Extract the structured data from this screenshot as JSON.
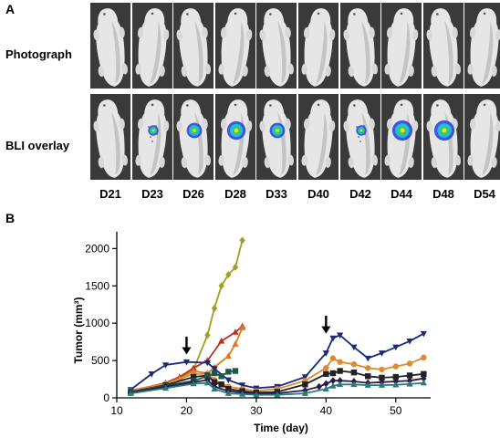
{
  "panel_a": {
    "label": "A",
    "rows": [
      "Photograph",
      "BLI overlay"
    ],
    "days": [
      "D21",
      "D23",
      "D26",
      "D28",
      "D33",
      "D40",
      "D42",
      "D44",
      "D48",
      "D54"
    ],
    "signal": [
      0,
      0.3,
      0.6,
      0.8,
      0.6,
      0,
      0.3,
      0.9,
      0.9,
      0
    ],
    "signal_colors": [
      "#1f3fd6",
      "#22c0e0",
      "#3cd23c",
      "#f0e030"
    ]
  },
  "panel_b": {
    "label": "B",
    "arrows_at_days": [
      20,
      40
    ]
  },
  "chart_data": {
    "type": "line",
    "xlabel": "Time (day)",
    "ylabel": "Tumor (mm³)",
    "xlim": [
      10,
      55
    ],
    "ylim": [
      0,
      2200
    ],
    "xticks": [
      10,
      20,
      30,
      40,
      50
    ],
    "yticks": [
      0,
      500,
      1000,
      1500,
      2000
    ],
    "series": [
      {
        "color": "#a0a020",
        "marker": "diamond",
        "x": [
          12,
          17,
          19,
          21,
          23,
          24,
          25,
          26,
          27,
          28
        ],
        "y": [
          80,
          180,
          260,
          380,
          840,
          1200,
          1500,
          1650,
          1750,
          2110
        ]
      },
      {
        "color": "#b83020",
        "marker": "triangle-up",
        "x": [
          12,
          17,
          19,
          21,
          23,
          25,
          27,
          28
        ],
        "y": [
          90,
          200,
          280,
          400,
          500,
          760,
          880,
          960
        ]
      },
      {
        "color": "#e07820",
        "marker": "triangle-up",
        "x": [
          12,
          17,
          19,
          21,
          23,
          24,
          26,
          27,
          28
        ],
        "y": [
          100,
          190,
          260,
          360,
          330,
          410,
          560,
          720,
          940
        ]
      },
      {
        "color": "#1a2a7a",
        "marker": "triangle-down",
        "x": [
          12,
          15,
          17,
          20,
          23,
          24,
          26,
          28,
          30,
          33,
          37,
          40,
          41,
          42,
          44,
          46,
          48,
          50,
          52,
          54
        ],
        "y": [
          110,
          320,
          440,
          480,
          470,
          390,
          240,
          170,
          130,
          150,
          280,
          600,
          800,
          840,
          680,
          530,
          600,
          680,
          760,
          860
        ]
      },
      {
        "color": "#e08a30",
        "marker": "circle",
        "x": [
          12,
          17,
          21,
          23,
          24,
          26,
          28,
          30,
          33,
          37,
          40,
          41,
          42,
          44,
          46,
          48,
          50,
          52,
          54
        ],
        "y": [
          90,
          190,
          320,
          320,
          240,
          150,
          120,
          90,
          120,
          230,
          400,
          530,
          480,
          450,
          400,
          380,
          420,
          460,
          540
        ]
      },
      {
        "color": "#222222",
        "marker": "square",
        "x": [
          12,
          17,
          21,
          23,
          24,
          25,
          26,
          28,
          30,
          33,
          37,
          40,
          41,
          42,
          44,
          46,
          48,
          50,
          52,
          54
        ],
        "y": [
          80,
          170,
          280,
          300,
          210,
          180,
          120,
          90,
          70,
          80,
          180,
          320,
          330,
          360,
          340,
          290,
          270,
          280,
          300,
          320
        ]
      },
      {
        "color": "#1a5a4a",
        "marker": "square",
        "x": [
          12,
          17,
          21,
          23,
          24,
          25,
          26,
          27
        ],
        "y": [
          80,
          160,
          230,
          290,
          330,
          290,
          350,
          360
        ]
      },
      {
        "color": "#2a1a4a",
        "marker": "diamond",
        "x": [
          12,
          17,
          21,
          23,
          24,
          26,
          28,
          30,
          33,
          37,
          39,
          40,
          41,
          42,
          44,
          46,
          48,
          50,
          52,
          54
        ],
        "y": [
          70,
          150,
          210,
          240,
          150,
          90,
          70,
          60,
          60,
          100,
          150,
          190,
          230,
          230,
          220,
          200,
          210,
          220,
          230,
          260
        ]
      },
      {
        "color": "#2a7a7a",
        "marker": "triangle-up",
        "x": [
          12,
          17,
          21,
          23,
          24,
          26,
          28,
          30,
          33,
          37,
          40,
          41,
          42,
          44,
          46,
          48,
          50,
          52,
          54
        ],
        "y": [
          60,
          130,
          190,
          200,
          120,
          60,
          50,
          40,
          40,
          60,
          120,
          160,
          180,
          180,
          170,
          170,
          175,
          185,
          200
        ]
      }
    ]
  }
}
